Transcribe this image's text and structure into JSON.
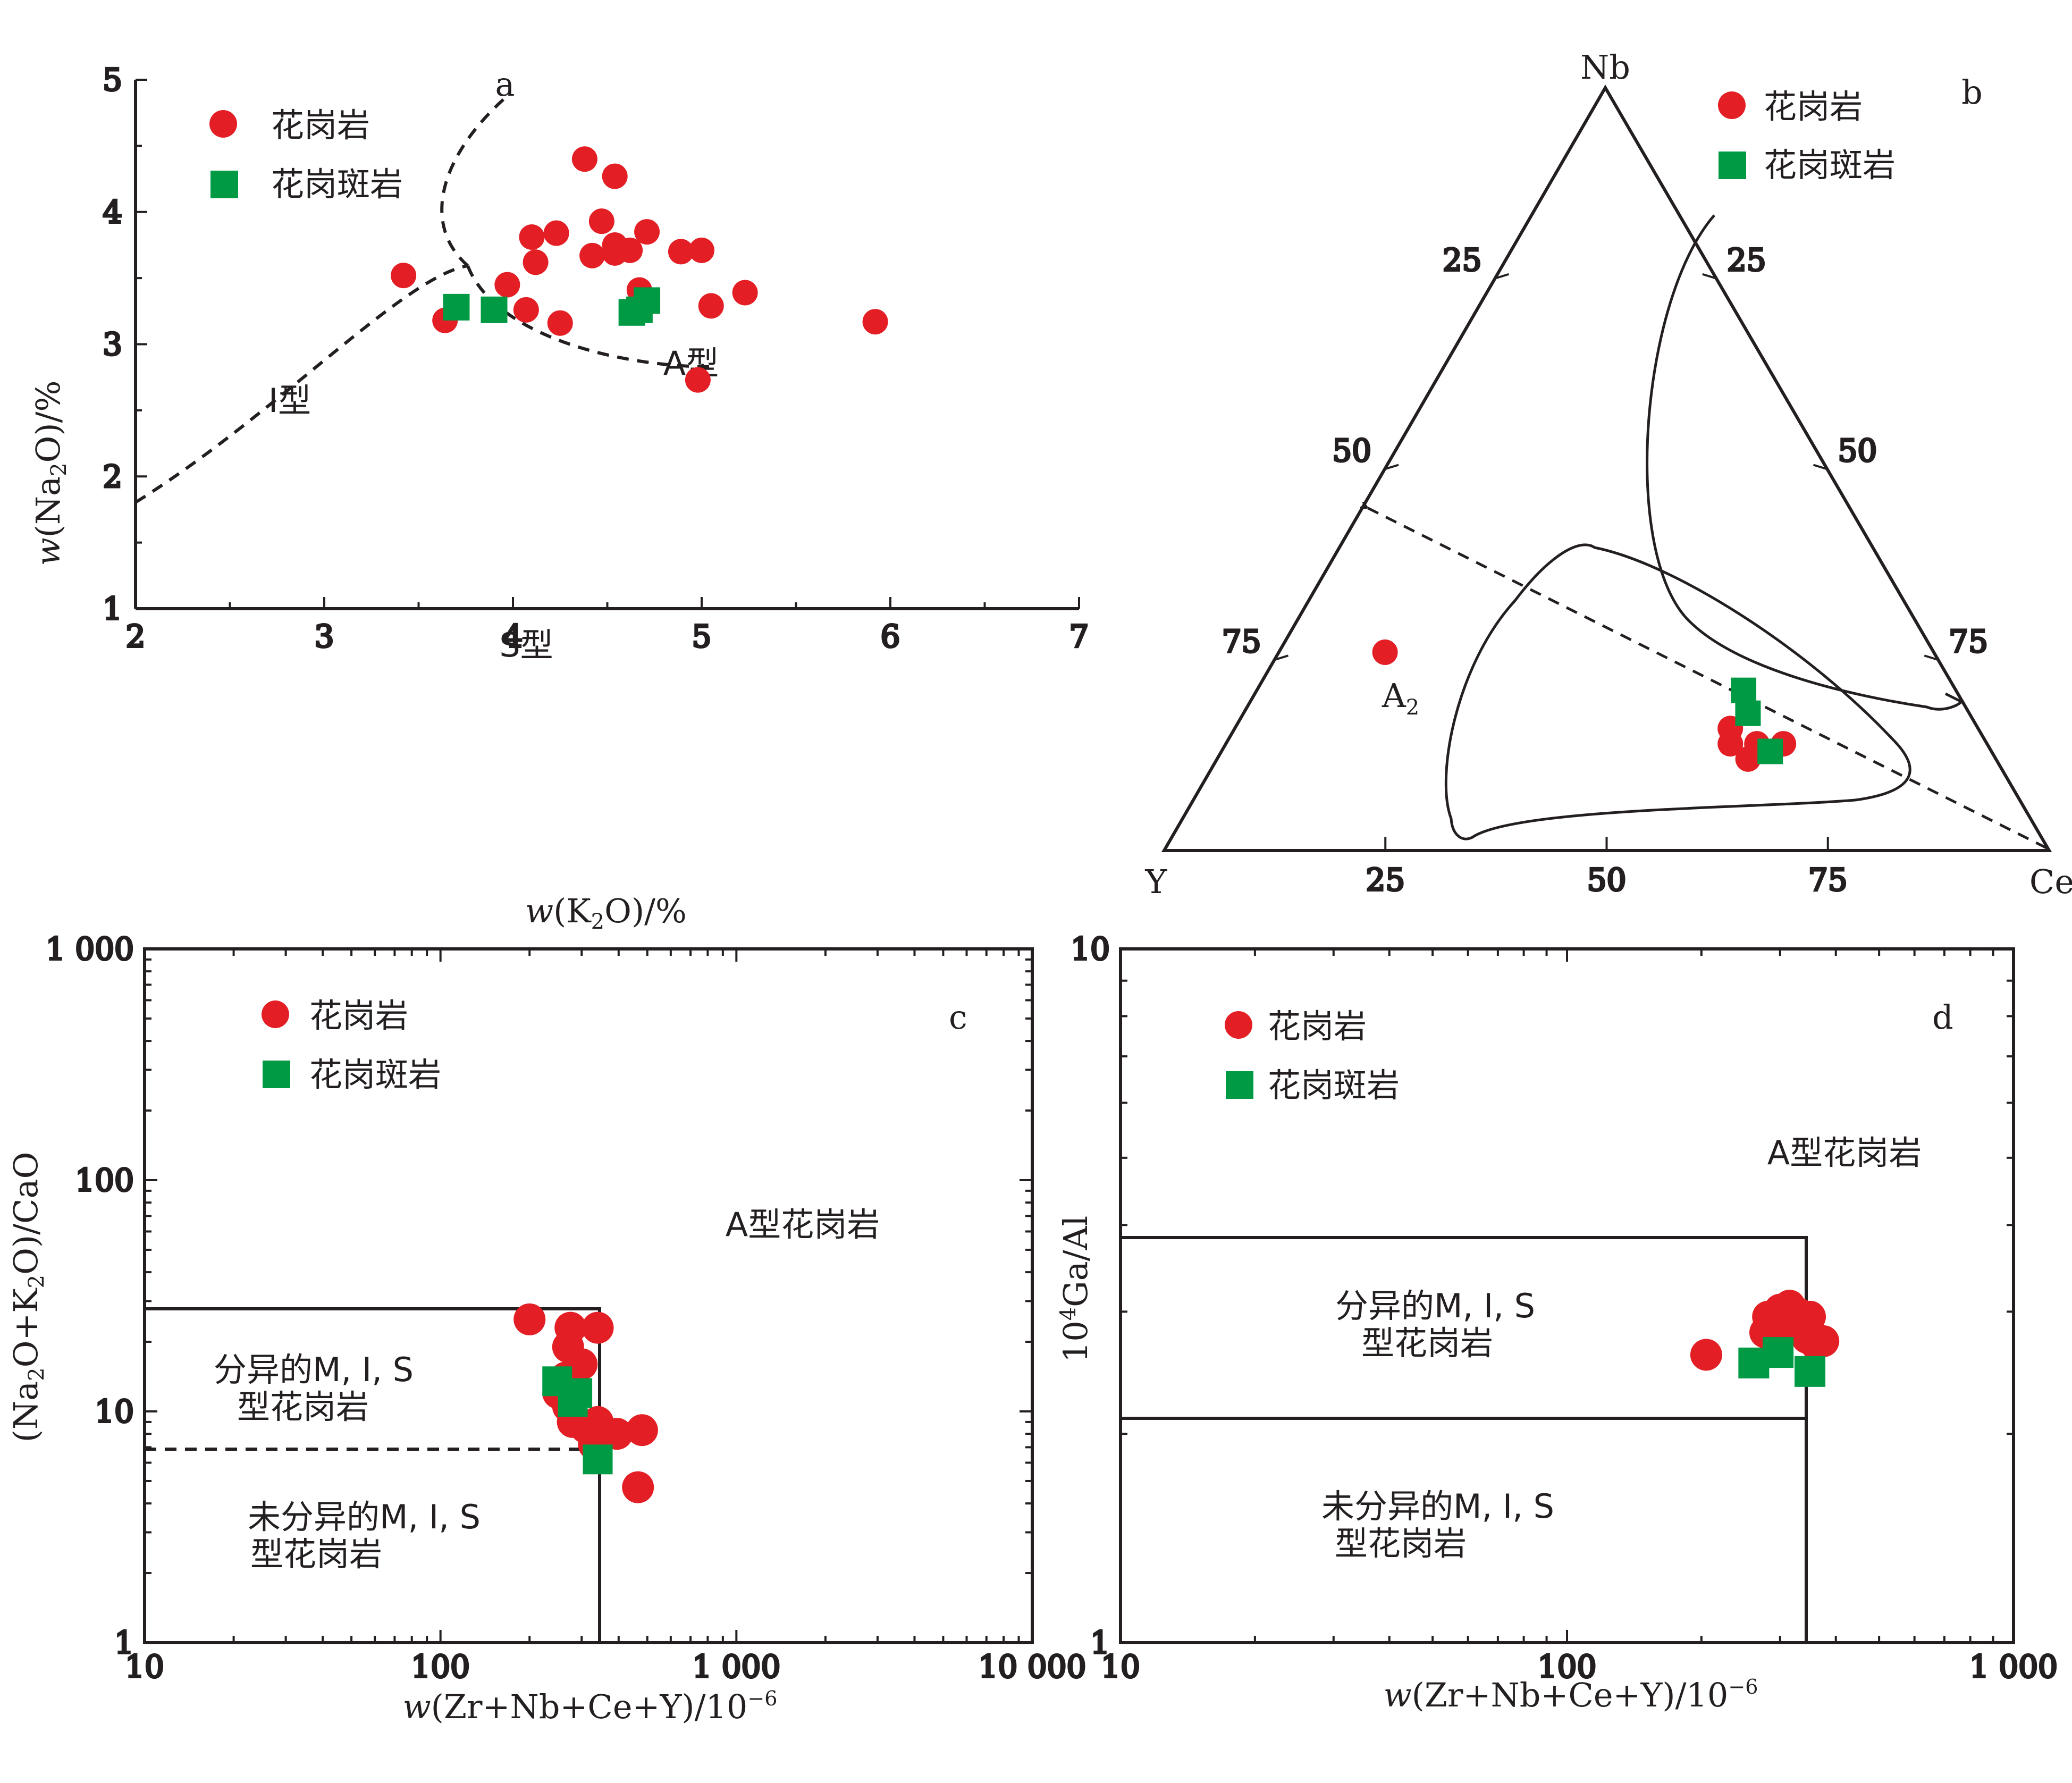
{
  "colors": {
    "granite": "#e31e24",
    "porphyry": "#009a44",
    "ink": "#231f20"
  },
  "legend": {
    "granite": "花岗岩",
    "porphyry": "花岗斑岩"
  },
  "chart_data": [
    {
      "panel": "a",
      "type": "scatter",
      "xlabel_parts": [
        "w",
        "(K",
        "2",
        "O)/%"
      ],
      "ylabel_parts": [
        "w",
        "(Na",
        "2",
        "O)/%"
      ],
      "xlim": [
        2,
        7
      ],
      "ylim": [
        1,
        5
      ],
      "xticks": [
        "2",
        "3",
        "4",
        "5",
        "6",
        "7"
      ],
      "yticks": [
        "1",
        "2",
        "3",
        "4",
        "5"
      ],
      "fields": [
        "I型",
        "A型",
        "S型"
      ],
      "series": [
        {
          "name": "花岗岩",
          "points": [
            [
              3.42,
              3.52
            ],
            [
              3.64,
              3.18
            ],
            [
              3.97,
              3.45
            ],
            [
              4.07,
              3.26
            ],
            [
              4.1,
              3.81
            ],
            [
              4.12,
              3.62
            ],
            [
              4.23,
              3.84
            ],
            [
              4.25,
              3.16
            ],
            [
              4.38,
              4.4
            ],
            [
              4.42,
              3.67
            ],
            [
              4.47,
              3.93
            ],
            [
              4.54,
              4.27
            ],
            [
              4.54,
              3.75
            ],
            [
              4.54,
              3.69
            ],
            [
              4.62,
              3.71
            ],
            [
              4.67,
              3.41
            ],
            [
              4.71,
              3.85
            ],
            [
              4.89,
              3.7
            ],
            [
              5.0,
              3.71
            ],
            [
              4.98,
              2.73
            ],
            [
              5.05,
              3.29
            ],
            [
              5.23,
              3.39
            ],
            [
              5.92,
              3.17
            ]
          ]
        },
        {
          "name": "花岗斑岩",
          "points": [
            [
              3.7,
              3.28
            ],
            [
              3.9,
              3.26
            ],
            [
              4.63,
              3.24
            ],
            [
              4.67,
              3.26
            ],
            [
              4.71,
              3.33
            ]
          ]
        }
      ]
    },
    {
      "panel": "b",
      "type": "ternary",
      "apices": [
        "Nb",
        "Y",
        "Ce"
      ],
      "ticks": [
        "25",
        "50",
        "75"
      ],
      "fields": [
        "A2"
      ],
      "series": [
        {
          "name": "花岗岩",
          "points_NbYCe": [
            [
              26,
              62,
              12
            ],
            [
              16,
              28,
              56
            ],
            [
              14,
              29,
              57
            ],
            [
              14,
              26,
              60
            ],
            [
              12,
              28,
              60
            ],
            [
              14,
              23,
              63
            ]
          ]
        },
        {
          "name": "花岗斑岩",
          "points_NbYCe": [
            [
              21,
              24,
              55
            ],
            [
              18,
              25,
              57
            ],
            [
              13,
              25,
              62
            ]
          ]
        }
      ]
    },
    {
      "panel": "c",
      "type": "scatter",
      "xscale": "log",
      "yscale": "log",
      "xlabel_parts": [
        "w",
        "(Zr+Nb+Ce+Y)/10",
        "−6"
      ],
      "ylabel_parts": [
        "(Na",
        "2",
        "O+K",
        "2",
        "O)/CaO"
      ],
      "xlim": [
        10,
        10000
      ],
      "ylim": [
        1,
        1000
      ],
      "xticks": [
        "10",
        "100",
        "1 000",
        "10 000"
      ],
      "yticks": [
        "1",
        "10",
        "100",
        "1 000"
      ],
      "fields": [
        "A型花岗岩",
        "分异的M, I, S",
        "型花岗岩",
        "未分异的M, I, S",
        "型花岗岩"
      ],
      "series": [
        {
          "name": "花岗岩",
          "points": [
            [
              200,
              25
            ],
            [
              275,
              23
            ],
            [
              340,
              23
            ],
            [
              270,
              19
            ],
            [
              300,
              16
            ],
            [
              265,
              14
            ],
            [
              250,
              12
            ],
            [
              270,
              10.5
            ],
            [
              280,
              9
            ],
            [
              310,
              8.5
            ],
            [
              340,
              9
            ],
            [
              395,
              8
            ],
            [
              480,
              8.3
            ],
            [
              330,
              7.2
            ],
            [
              465,
              4.7
            ]
          ]
        },
        {
          "name": "花岗斑岩",
          "points": [
            [
              248,
              13.5
            ],
            [
              290,
              12
            ],
            [
              280,
              11
            ],
            [
              340,
              6.2
            ]
          ]
        }
      ]
    },
    {
      "panel": "d",
      "type": "scatter",
      "xscale": "log",
      "yscale": "log",
      "xlabel_parts": [
        "w",
        "(Zr+Nb+Ce+Y)/10",
        "−6"
      ],
      "ylabel_parts": [
        "10",
        "4",
        "Ga/Al"
      ],
      "xlim": [
        10,
        1000
      ],
      "ylim": [
        1,
        10
      ],
      "xticks": [
        "10",
        "100",
        "1 000"
      ],
      "yticks": [
        "1",
        "10"
      ],
      "fields": [
        "A型花岗岩",
        "分异的M, I, S",
        "型花岗岩",
        "未分异的M, I, S",
        "型花岗岩"
      ],
      "series": [
        {
          "name": "花岗岩",
          "points": [
            [
              282,
              2.95
            ],
            [
              300,
              3.02
            ],
            [
              315,
              3.06
            ],
            [
              330,
              2.98
            ],
            [
              350,
              2.95
            ],
            [
              278,
              2.8
            ],
            [
              300,
              2.85
            ],
            [
              345,
              2.75
            ],
            [
              360,
              2.7
            ],
            [
              375,
              2.72
            ],
            [
              205,
              2.6
            ]
          ]
        },
        {
          "name": "花岗斑岩",
          "points": [
            [
              297,
              2.62
            ],
            [
              262,
              2.53
            ],
            [
              350,
              2.46
            ]
          ]
        }
      ]
    }
  ]
}
